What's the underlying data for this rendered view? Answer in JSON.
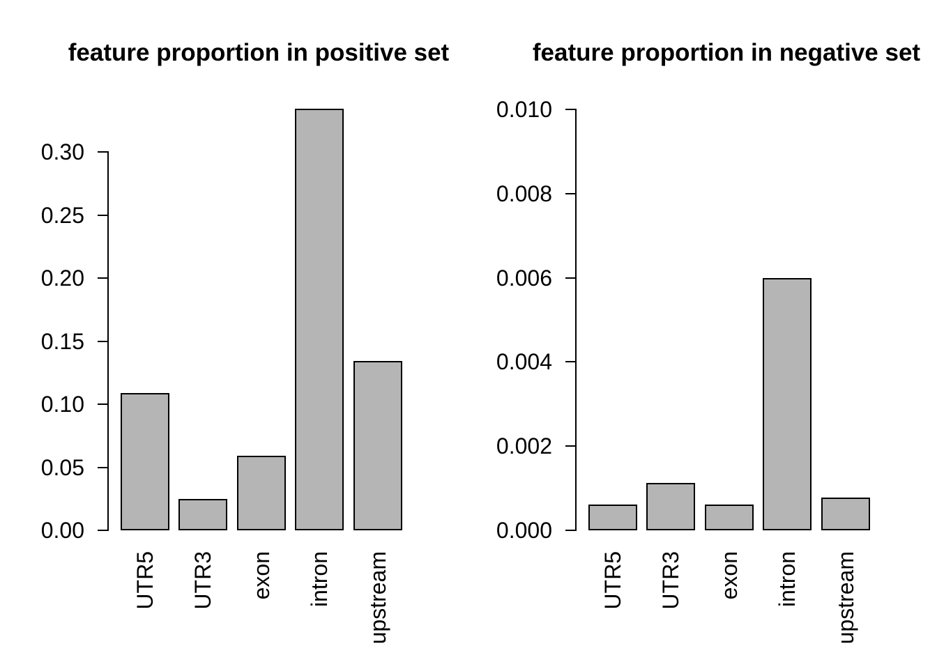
{
  "figure": {
    "background_color": "#ffffff",
    "bar_fill_color": "#b5b5b5",
    "bar_border_color": "#000000",
    "axis_color": "#000000",
    "text_color": "#000000"
  },
  "chart_data": [
    {
      "type": "bar",
      "title": "feature proportion in positive set",
      "categories": [
        "UTR5",
        "UTR3",
        "exon",
        "intron",
        "upstream"
      ],
      "values": [
        0.109,
        0.025,
        0.059,
        0.334,
        0.134
      ],
      "xlabel": "",
      "ylabel": "",
      "ylim": [
        0,
        0.335
      ],
      "yticks": [
        0.0,
        0.05,
        0.1,
        0.15,
        0.2,
        0.25,
        0.3
      ],
      "ytick_labels": [
        "0.00",
        "0.05",
        "0.10",
        "0.15",
        "0.20",
        "0.25",
        "0.30"
      ],
      "grid": false,
      "legend": null,
      "x_labels_rotated_90deg": true
    },
    {
      "type": "bar",
      "title": "feature proportion in negative set",
      "categories": [
        "UTR5",
        "UTR3",
        "exon",
        "intron",
        "upstream"
      ],
      "values": [
        0.00061,
        0.00113,
        0.00061,
        0.006,
        0.00077
      ],
      "xlabel": "",
      "ylabel": "",
      "ylim": [
        0,
        0.01
      ],
      "yticks": [
        0.0,
        0.002,
        0.004,
        0.006,
        0.008,
        0.01
      ],
      "ytick_labels": [
        "0.000",
        "0.002",
        "0.004",
        "0.006",
        "0.008",
        "0.010"
      ],
      "grid": false,
      "legend": null,
      "x_labels_rotated_90deg": true
    }
  ]
}
